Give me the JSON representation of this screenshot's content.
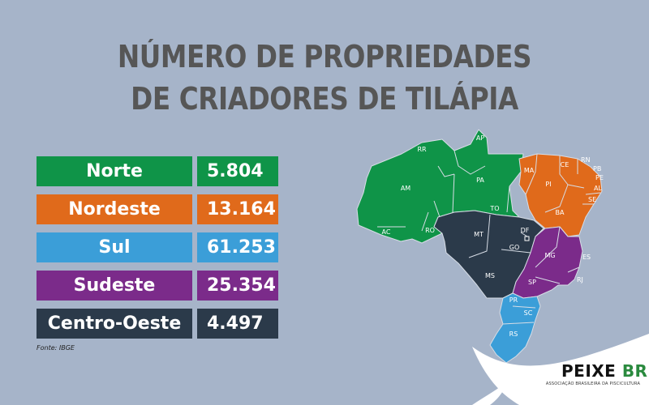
{
  "title": {
    "line1": "NÚMERO DE PROPRIEDADES",
    "line2": "DE CRIADORES DE TILÁPIA"
  },
  "table": {
    "rows": [
      {
        "region": "Norte",
        "value": "5.804",
        "color": "#0f9448"
      },
      {
        "region": "Nordeste",
        "value": "13.164",
        "color": "#e06a1b"
      },
      {
        "region": "Sul",
        "value": "61.253",
        "color": "#3b9ed8"
      },
      {
        "region": "Sudeste",
        "value": "25.354",
        "color": "#7b2b8a"
      },
      {
        "region": "Centro-Oeste",
        "value": "4.497",
        "color": "#2b3a4a"
      }
    ],
    "source": "Fonte: IBGE"
  },
  "map": {
    "states": [
      "RR",
      "AP",
      "AM",
      "PA",
      "AC",
      "RO",
      "TO",
      "MA",
      "CE",
      "RN",
      "PB",
      "PE",
      "AL",
      "SE",
      "PI",
      "BA",
      "MT",
      "DF",
      "GO",
      "MS",
      "MG",
      "ES",
      "RJ",
      "SP",
      "PR",
      "SC",
      "RS"
    ]
  },
  "brand": {
    "name": "PEIXE",
    "suffix": "BR",
    "tagline": "ASSOCIAÇÃO BRASILEIRA DA PISCICULTURA"
  }
}
